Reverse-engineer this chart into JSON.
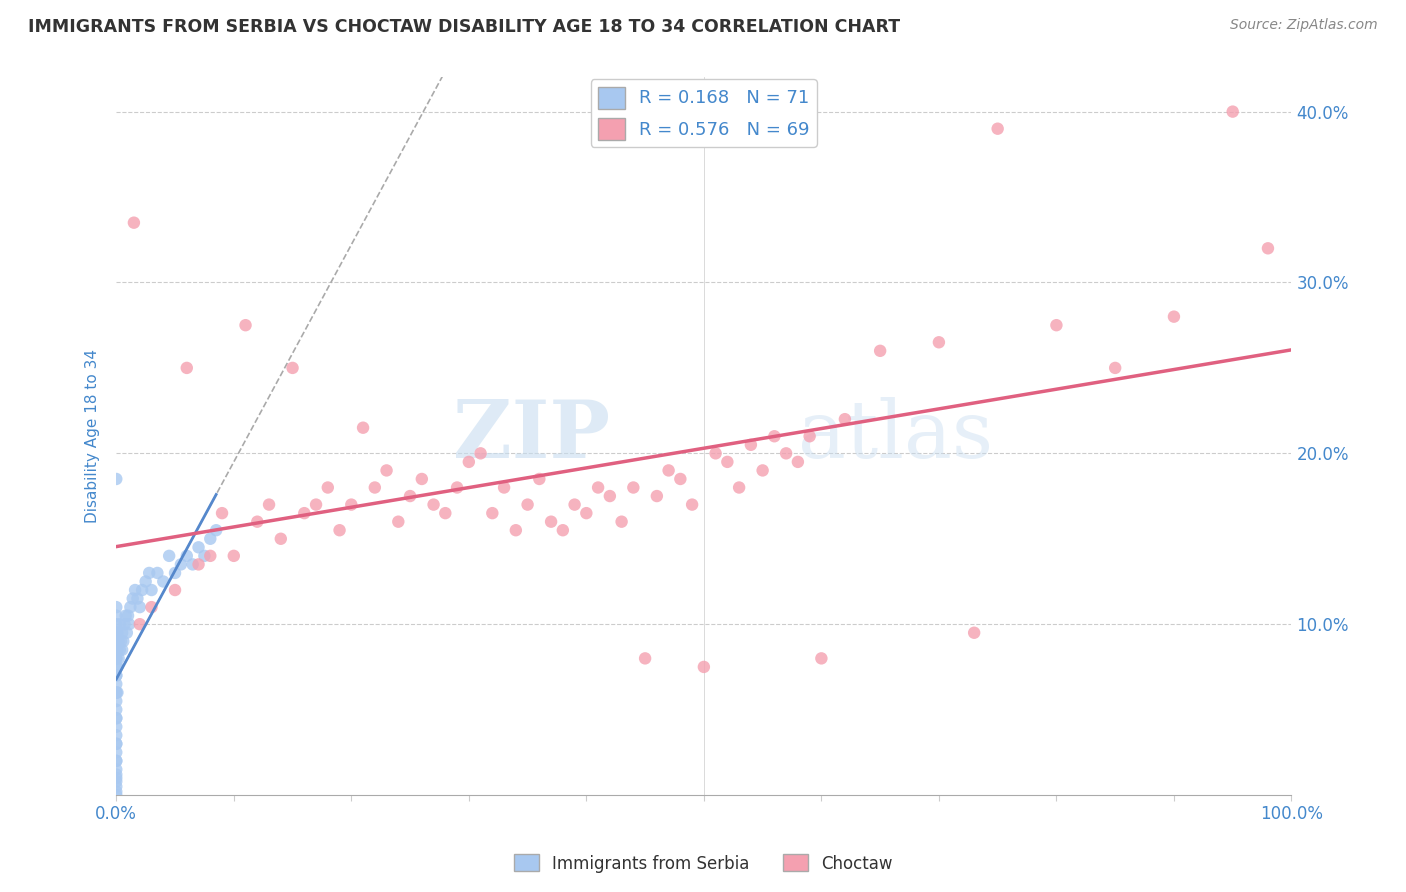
{
  "title": "IMMIGRANTS FROM SERBIA VS CHOCTAW DISABILITY AGE 18 TO 34 CORRELATION CHART",
  "source": "Source: ZipAtlas.com",
  "ylabel": "Disability Age 18 to 34",
  "legend_label1": "Immigrants from Serbia",
  "legend_label2": "Choctaw",
  "R1": 0.168,
  "N1": 71,
  "R2": 0.576,
  "N2": 69,
  "color1": "#a8c8f0",
  "color2": "#f4a0b0",
  "line1_color": "#5588cc",
  "line2_color": "#e06080",
  "watermark_zip": "ZIP",
  "watermark_atlas": "atlas",
  "xlim": [
    0.0,
    100.0
  ],
  "ylim": [
    0.0,
    42.0
  ],
  "yticks": [
    10.0,
    20.0,
    30.0,
    40.0
  ],
  "background_color": "#ffffff",
  "grid_color": "#cccccc",
  "title_color": "#333333",
  "axis_label_color": "#4488cc",
  "tick_label_color": "#4488cc",
  "serbia_x": [
    0.0,
    0.0,
    0.0,
    0.0,
    0.0,
    0.0,
    0.0,
    0.0,
    0.0,
    0.0,
    0.0,
    0.0,
    0.0,
    0.0,
    0.0,
    0.0,
    0.0,
    0.0,
    0.0,
    0.0,
    0.0,
    0.0,
    0.0,
    0.0,
    0.0,
    0.0,
    0.0,
    0.0,
    0.0,
    0.0,
    0.1,
    0.1,
    0.1,
    0.1,
    0.2,
    0.2,
    0.3,
    0.3,
    0.4,
    0.5,
    0.5,
    0.6,
    0.7,
    0.8,
    0.9,
    1.0,
    1.1,
    1.2,
    1.4,
    1.6,
    1.8,
    2.0,
    2.2,
    2.5,
    2.8,
    3.0,
    3.5,
    4.0,
    4.5,
    5.0,
    5.5,
    6.0,
    6.5,
    7.0,
    7.5,
    8.0,
    8.5,
    0.0,
    0.0,
    0.0,
    0.0
  ],
  "serbia_y": [
    0.0,
    0.5,
    1.0,
    1.5,
    2.0,
    2.5,
    3.0,
    3.5,
    4.0,
    4.5,
    5.0,
    5.5,
    6.0,
    6.5,
    7.0,
    7.5,
    8.0,
    8.5,
    9.0,
    9.5,
    10.0,
    10.5,
    11.0,
    3.0,
    4.5,
    6.0,
    7.0,
    8.0,
    9.0,
    2.0,
    7.5,
    8.5,
    9.5,
    6.0,
    8.0,
    9.0,
    8.5,
    10.0,
    9.0,
    9.5,
    8.5,
    9.0,
    10.0,
    10.5,
    9.5,
    10.5,
    10.0,
    11.0,
    11.5,
    12.0,
    11.5,
    11.0,
    12.0,
    12.5,
    13.0,
    12.0,
    13.0,
    12.5,
    14.0,
    13.0,
    13.5,
    14.0,
    13.5,
    14.5,
    14.0,
    15.0,
    15.5,
    18.5,
    0.2,
    0.8,
    1.2
  ],
  "choctaw_x": [
    1.5,
    2.0,
    3.0,
    5.0,
    6.0,
    7.0,
    8.0,
    9.0,
    10.0,
    11.0,
    12.0,
    13.0,
    14.0,
    15.0,
    16.0,
    17.0,
    18.0,
    19.0,
    20.0,
    21.0,
    22.0,
    23.0,
    24.0,
    25.0,
    26.0,
    27.0,
    28.0,
    29.0,
    30.0,
    31.0,
    32.0,
    33.0,
    34.0,
    35.0,
    36.0,
    37.0,
    38.0,
    39.0,
    40.0,
    41.0,
    42.0,
    43.0,
    44.0,
    45.0,
    46.0,
    47.0,
    48.0,
    49.0,
    50.0,
    51.0,
    52.0,
    53.0,
    54.0,
    55.0,
    56.0,
    57.0,
    58.0,
    59.0,
    60.0,
    62.0,
    65.0,
    70.0,
    73.0,
    75.0,
    80.0,
    85.0,
    90.0,
    95.0,
    98.0
  ],
  "choctaw_y": [
    33.5,
    10.0,
    11.0,
    12.0,
    25.0,
    13.5,
    14.0,
    16.5,
    14.0,
    27.5,
    16.0,
    17.0,
    15.0,
    25.0,
    16.5,
    17.0,
    18.0,
    15.5,
    17.0,
    21.5,
    18.0,
    19.0,
    16.0,
    17.5,
    18.5,
    17.0,
    16.5,
    18.0,
    19.5,
    20.0,
    16.5,
    18.0,
    15.5,
    17.0,
    18.5,
    16.0,
    15.5,
    17.0,
    16.5,
    18.0,
    17.5,
    16.0,
    18.0,
    8.0,
    17.5,
    19.0,
    18.5,
    17.0,
    7.5,
    20.0,
    19.5,
    18.0,
    20.5,
    19.0,
    21.0,
    20.0,
    19.5,
    21.0,
    8.0,
    22.0,
    26.0,
    26.5,
    9.5,
    39.0,
    27.5,
    25.0,
    28.0,
    40.0,
    32.0
  ]
}
